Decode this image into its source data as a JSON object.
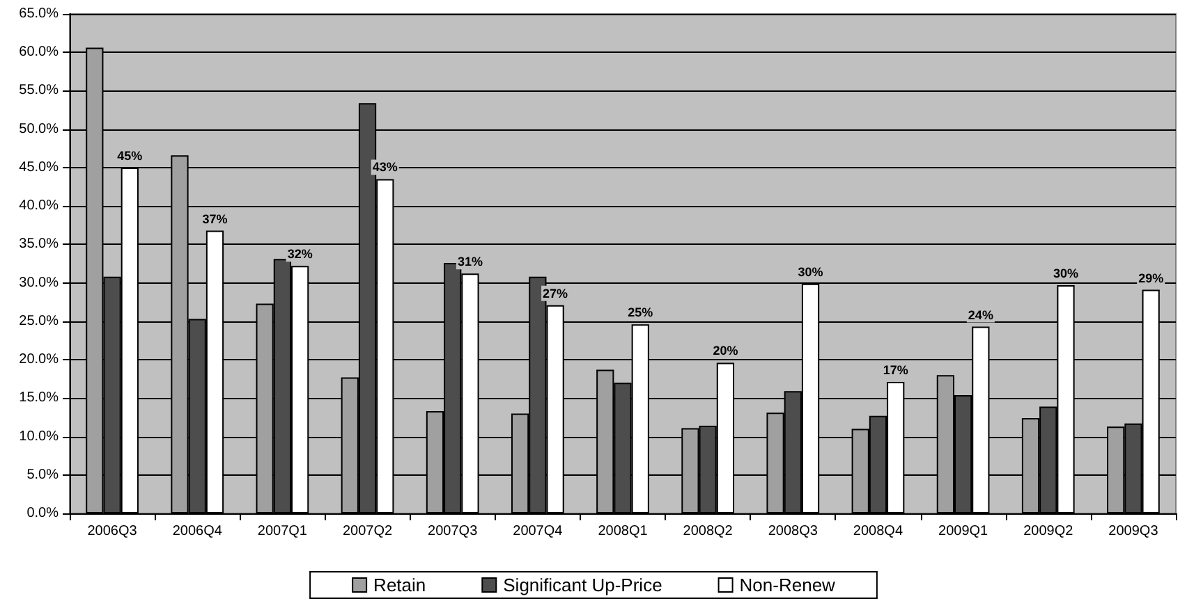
{
  "chart_data": {
    "type": "bar",
    "categories": [
      "2006Q3",
      "2006Q4",
      "2007Q1",
      "2007Q2",
      "2007Q3",
      "2007Q4",
      "2008Q1",
      "2008Q2",
      "2008Q3",
      "2008Q4",
      "2009Q1",
      "2009Q2",
      "2009Q3"
    ],
    "series": [
      {
        "name": "Retain",
        "color": "#a0a0a0",
        "values": [
          60.6,
          46.6,
          27.3,
          17.7,
          13.3,
          13.0,
          18.7,
          11.1,
          13.1,
          11.0,
          18.0,
          12.4,
          11.3
        ]
      },
      {
        "name": "Significant Up-Price",
        "color": "#4d4d4d",
        "values": [
          30.8,
          25.3,
          33.1,
          53.4,
          32.6,
          30.8,
          17.0,
          11.4,
          15.9,
          12.7,
          15.4,
          13.9,
          11.7
        ]
      },
      {
        "name": "Non-Renew",
        "color": "#ffffff",
        "values": [
          45.0,
          36.8,
          32.2,
          43.5,
          31.2,
          27.1,
          24.6,
          19.6,
          29.9,
          17.1,
          24.3,
          29.7,
          29.1
        ],
        "value_labels": [
          "45%",
          "37%",
          "32%",
          "43%",
          "31%",
          "27%",
          "25%",
          "20%",
          "30%",
          "17%",
          "24%",
          "30%",
          "29%"
        ]
      }
    ],
    "ylim": [
      0,
      65
    ],
    "yticks": [
      {
        "value": 0,
        "label": "0.0%"
      },
      {
        "value": 5,
        "label": "5.0%"
      },
      {
        "value": 10,
        "label": "10.0%"
      },
      {
        "value": 15,
        "label": "15.0%"
      },
      {
        "value": 20,
        "label": "20.0%"
      },
      {
        "value": 25,
        "label": "25.0%"
      },
      {
        "value": 30,
        "label": "30.0%"
      },
      {
        "value": 35,
        "label": "35.0%"
      },
      {
        "value": 40,
        "label": "40.0%"
      },
      {
        "value": 45,
        "label": "45.0%"
      },
      {
        "value": 50,
        "label": "50.0%"
      },
      {
        "value": 55,
        "label": "55.0%"
      },
      {
        "value": 60,
        "label": "60.0%"
      },
      {
        "value": 65,
        "label": "65.0%"
      }
    ],
    "grid": "y",
    "legend": "bottom"
  }
}
